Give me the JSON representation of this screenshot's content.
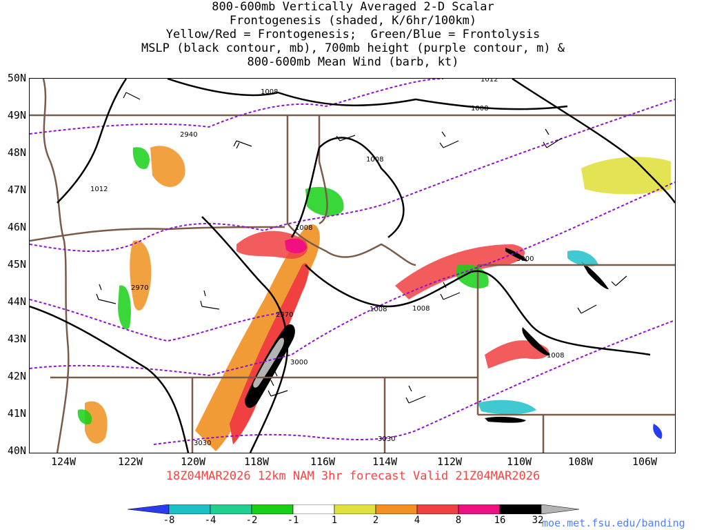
{
  "title_lines": [
    "800-600mb Vertically Averaged 2-D Scalar",
    "Frontogenesis (shaded, K/6hr/100km)",
    "Yellow/Red = Frontogenesis;  Green/Blue = Frontolysis",
    "MSLP (black contour, mb), 700mb height (purple contour, m) &",
    "800-600mb Mean Wind (barb, kt)"
  ],
  "lat_labels": [
    "50N",
    "49N",
    "48N",
    "47N",
    "46N",
    "45N",
    "44N",
    "43N",
    "42N",
    "41N",
    "40N"
  ],
  "lon_labels": [
    "124W",
    "122W",
    "120W",
    "118W",
    "116W",
    "114W",
    "112W",
    "110W",
    "108W",
    "106W"
  ],
  "footer": "18Z04MAR2026 12km NAM 3hr forecast Valid 21Z04MAR2026",
  "colorbar": {
    "labels": [
      "-8",
      "-4",
      "-2",
      "-1",
      "1",
      "2",
      "4",
      "8",
      "16",
      "32"
    ],
    "colors": [
      "#2a3cf0",
      "#1ec0c8",
      "#20d090",
      "#18d018",
      "#ffffff",
      "#e0e040",
      "#f09020",
      "#f04040",
      "#f01080",
      "#000000",
      "#b4b4b4"
    ]
  },
  "contour_labels": {
    "mslp": [
      "1008",
      "1012",
      "1008",
      "1008",
      "1008",
      "1012",
      "1008",
      "1008",
      "1008"
    ],
    "height": [
      "2940",
      "2970",
      "2970",
      "3000",
      "3000",
      "3030",
      "3030"
    ]
  },
  "credit": "moe.met.fsu.edu/banding",
  "colors": {
    "mslp_contour": "#000000",
    "height_contour": "#9010d0",
    "borders": "#7a5a48",
    "footer_text": "#ff4040",
    "credit_text": "#5080ff"
  }
}
